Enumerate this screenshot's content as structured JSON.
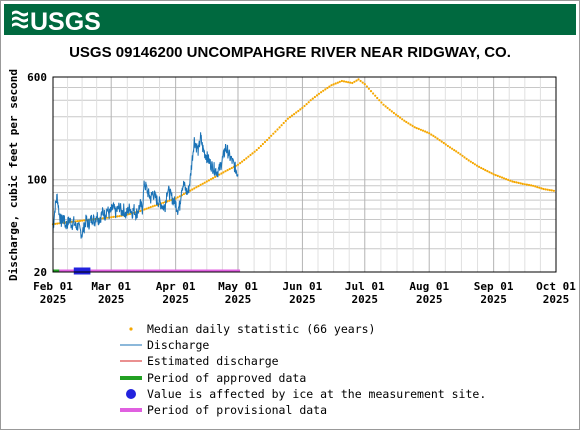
{
  "header": {
    "logo_text": "USGS",
    "logo_color": "#ffffff",
    "bar_color": "#00693f"
  },
  "chart_data": {
    "type": "line",
    "title": "USGS 09146200 UNCOMPAHGRE RIVER NEAR RIDGWAY, CO.",
    "ylabel": "Discharge, cubic feet per second",
    "xlabel": "",
    "y_scale": "log",
    "ylim": [
      20,
      600
    ],
    "xlim": [
      "2025-02-01",
      "2025-10-01"
    ],
    "yticks": [
      20,
      100,
      600
    ],
    "xticks": [
      {
        "date": "2025-02-01",
        "line1": "Feb 01",
        "line2": "2025"
      },
      {
        "date": "2025-03-01",
        "line1": "Mar 01",
        "line2": "2025"
      },
      {
        "date": "2025-04-01",
        "line1": "Apr 01",
        "line2": "2025"
      },
      {
        "date": "2025-05-01",
        "line1": "May 01",
        "line2": "2025"
      },
      {
        "date": "2025-06-01",
        "line1": "Jun 01",
        "line2": "2025"
      },
      {
        "date": "2025-07-01",
        "line1": "Jul 01",
        "line2": "2025"
      },
      {
        "date": "2025-08-01",
        "line1": "Aug 01",
        "line2": "2025"
      },
      {
        "date": "2025-09-01",
        "line1": "Sep 01",
        "line2": "2025"
      },
      {
        "date": "2025-10-01",
        "line1": "Oct 01",
        "line2": "2025"
      }
    ],
    "grid": true,
    "legend_position": "bottom",
    "series": [
      {
        "name": "Median daily statistic (66 years)",
        "kind": "points",
        "color": "#f5a700",
        "points": [
          [
            "2025-02-01",
            46
          ],
          [
            "2025-02-05",
            47
          ],
          [
            "2025-02-10",
            48
          ],
          [
            "2025-02-15",
            49
          ],
          [
            "2025-02-20",
            50
          ],
          [
            "2025-02-25",
            51
          ],
          [
            "2025-03-01",
            52
          ],
          [
            "2025-03-05",
            53
          ],
          [
            "2025-03-10",
            55
          ],
          [
            "2025-03-15",
            58
          ],
          [
            "2025-03-20",
            62
          ],
          [
            "2025-03-25",
            66
          ],
          [
            "2025-04-01",
            72
          ],
          [
            "2025-04-05",
            78
          ],
          [
            "2025-04-10",
            86
          ],
          [
            "2025-04-15",
            95
          ],
          [
            "2025-04-20",
            105
          ],
          [
            "2025-04-25",
            116
          ],
          [
            "2025-05-01",
            130
          ],
          [
            "2025-05-05",
            145
          ],
          [
            "2025-05-10",
            168
          ],
          [
            "2025-05-15",
            200
          ],
          [
            "2025-05-20",
            240
          ],
          [
            "2025-05-25",
            290
          ],
          [
            "2025-06-01",
            350
          ],
          [
            "2025-06-05",
            400
          ],
          [
            "2025-06-10",
            460
          ],
          [
            "2025-06-15",
            520
          ],
          [
            "2025-06-20",
            560
          ],
          [
            "2025-06-25",
            540
          ],
          [
            "2025-06-28",
            575
          ],
          [
            "2025-07-01",
            530
          ],
          [
            "2025-07-05",
            450
          ],
          [
            "2025-07-10",
            370
          ],
          [
            "2025-07-15",
            320
          ],
          [
            "2025-07-20",
            280
          ],
          [
            "2025-07-25",
            250
          ],
          [
            "2025-08-01",
            225
          ],
          [
            "2025-08-05",
            205
          ],
          [
            "2025-08-10",
            180
          ],
          [
            "2025-08-15",
            160
          ],
          [
            "2025-08-20",
            140
          ],
          [
            "2025-08-25",
            125
          ],
          [
            "2025-09-01",
            110
          ],
          [
            "2025-09-05",
            104
          ],
          [
            "2025-09-10",
            97
          ],
          [
            "2025-09-15",
            93
          ],
          [
            "2025-09-20",
            90
          ],
          [
            "2025-09-25",
            85
          ],
          [
            "2025-10-01",
            82
          ]
        ]
      },
      {
        "name": "Discharge",
        "kind": "line",
        "color": "#1a72b6",
        "points": [
          [
            "2025-02-01",
            40
          ],
          [
            "2025-02-02",
            62
          ],
          [
            "2025-02-03",
            75
          ],
          [
            "2025-02-04",
            55
          ],
          [
            "2025-02-05",
            48
          ],
          [
            "2025-02-06",
            52
          ],
          [
            "2025-02-07",
            45
          ],
          [
            "2025-02-08",
            47
          ],
          [
            "2025-02-09",
            50
          ],
          [
            "2025-02-10",
            46
          ],
          [
            "2025-02-11",
            48
          ],
          [
            "2025-02-12",
            44
          ],
          [
            "2025-02-13",
            45
          ],
          [
            "2025-02-14",
            41
          ],
          [
            "2025-02-15",
            39
          ],
          [
            "2025-02-16",
            44
          ],
          [
            "2025-02-17",
            50
          ],
          [
            "2025-02-18",
            46
          ],
          [
            "2025-02-19",
            49
          ],
          [
            "2025-02-20",
            52
          ],
          [
            "2025-02-21",
            48
          ],
          [
            "2025-02-22",
            55
          ],
          [
            "2025-02-23",
            50
          ],
          [
            "2025-02-24",
            53
          ],
          [
            "2025-02-25",
            57
          ],
          [
            "2025-02-26",
            54
          ],
          [
            "2025-02-27",
            60
          ],
          [
            "2025-02-28",
            55
          ],
          [
            "2025-03-01",
            58
          ],
          [
            "2025-03-02",
            62
          ],
          [
            "2025-03-03",
            56
          ],
          [
            "2025-03-04",
            59
          ],
          [
            "2025-03-05",
            63
          ],
          [
            "2025-03-06",
            57
          ],
          [
            "2025-03-07",
            60
          ],
          [
            "2025-03-08",
            54
          ],
          [
            "2025-03-09",
            58
          ],
          [
            "2025-03-10",
            62
          ],
          [
            "2025-03-11",
            56
          ],
          [
            "2025-03-12",
            60
          ],
          [
            "2025-03-13",
            55
          ],
          [
            "2025-03-14",
            59
          ],
          [
            "2025-03-15",
            65
          ],
          [
            "2025-03-16",
            60
          ],
          [
            "2025-03-17",
            95
          ],
          [
            "2025-03-18",
            85
          ],
          [
            "2025-03-19",
            78
          ],
          [
            "2025-03-20",
            72
          ],
          [
            "2025-03-21",
            80
          ],
          [
            "2025-03-22",
            75
          ],
          [
            "2025-03-23",
            70
          ],
          [
            "2025-03-24",
            68
          ],
          [
            "2025-03-25",
            66
          ],
          [
            "2025-03-26",
            62
          ],
          [
            "2025-03-27",
            64
          ],
          [
            "2025-03-28",
            85
          ],
          [
            "2025-03-29",
            80
          ],
          [
            "2025-03-30",
            74
          ],
          [
            "2025-03-31",
            70
          ],
          [
            "2025-04-01",
            66
          ],
          [
            "2025-04-02",
            60
          ],
          [
            "2025-04-03",
            64
          ],
          [
            "2025-04-04",
            90
          ],
          [
            "2025-04-05",
            92
          ],
          [
            "2025-04-06",
            82
          ],
          [
            "2025-04-07",
            80
          ],
          [
            "2025-04-08",
            100
          ],
          [
            "2025-04-09",
            145
          ],
          [
            "2025-04-10",
            200
          ],
          [
            "2025-04-11",
            180
          ],
          [
            "2025-04-12",
            165
          ],
          [
            "2025-04-13",
            210
          ],
          [
            "2025-04-14",
            175
          ],
          [
            "2025-04-15",
            160
          ],
          [
            "2025-04-16",
            150
          ],
          [
            "2025-04-17",
            140
          ],
          [
            "2025-04-18",
            130
          ],
          [
            "2025-04-19",
            125
          ],
          [
            "2025-04-20",
            120
          ],
          [
            "2025-04-21",
            115
          ],
          [
            "2025-04-22",
            120
          ],
          [
            "2025-04-23",
            135
          ],
          [
            "2025-04-24",
            150
          ],
          [
            "2025-04-25",
            175
          ],
          [
            "2025-04-26",
            165
          ],
          [
            "2025-04-27",
            150
          ],
          [
            "2025-04-28",
            140
          ],
          [
            "2025-04-29",
            130
          ],
          [
            "2025-04-30",
            120
          ],
          [
            "2025-05-01",
            110
          ]
        ]
      },
      {
        "name": "Estimated discharge",
        "kind": "legend-only",
        "color": "#d62020"
      },
      {
        "name": "Period of approved data",
        "kind": "period",
        "color": "#22a022",
        "start": "2025-02-01",
        "end": "2025-02-04"
      },
      {
        "name": "Value is affected by ice at the measurement site.",
        "kind": "period",
        "color": "#2222dd",
        "start": "2025-02-11",
        "end": "2025-02-19"
      },
      {
        "name": "Period of provisional data",
        "kind": "period",
        "color": "#e060e0",
        "start": "2025-02-01",
        "end": "2025-05-02"
      }
    ]
  }
}
